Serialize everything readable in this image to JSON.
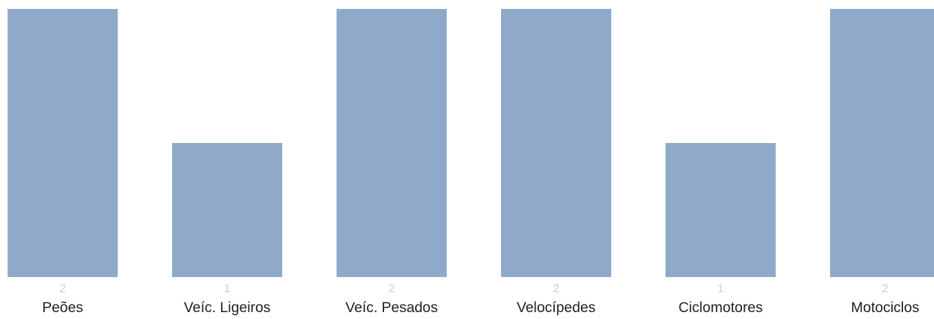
{
  "chart_data": {
    "type": "bar",
    "categories": [
      "Peões",
      "Veíc. Ligeiros",
      "Veíc. Pesados",
      "Velocípedes",
      "Ciclomotores",
      "Motociclos"
    ],
    "values": [
      2,
      1,
      2,
      2,
      1,
      2
    ],
    "value_labels": [
      "2",
      "1",
      "2",
      "2",
      "1",
      "2"
    ],
    "ylim": [
      0,
      2
    ],
    "grid": false,
    "legend": "none"
  },
  "colors": {
    "bar": "#8ea9c9",
    "value_label": "#cfcfcf",
    "category_label": "#222222"
  }
}
